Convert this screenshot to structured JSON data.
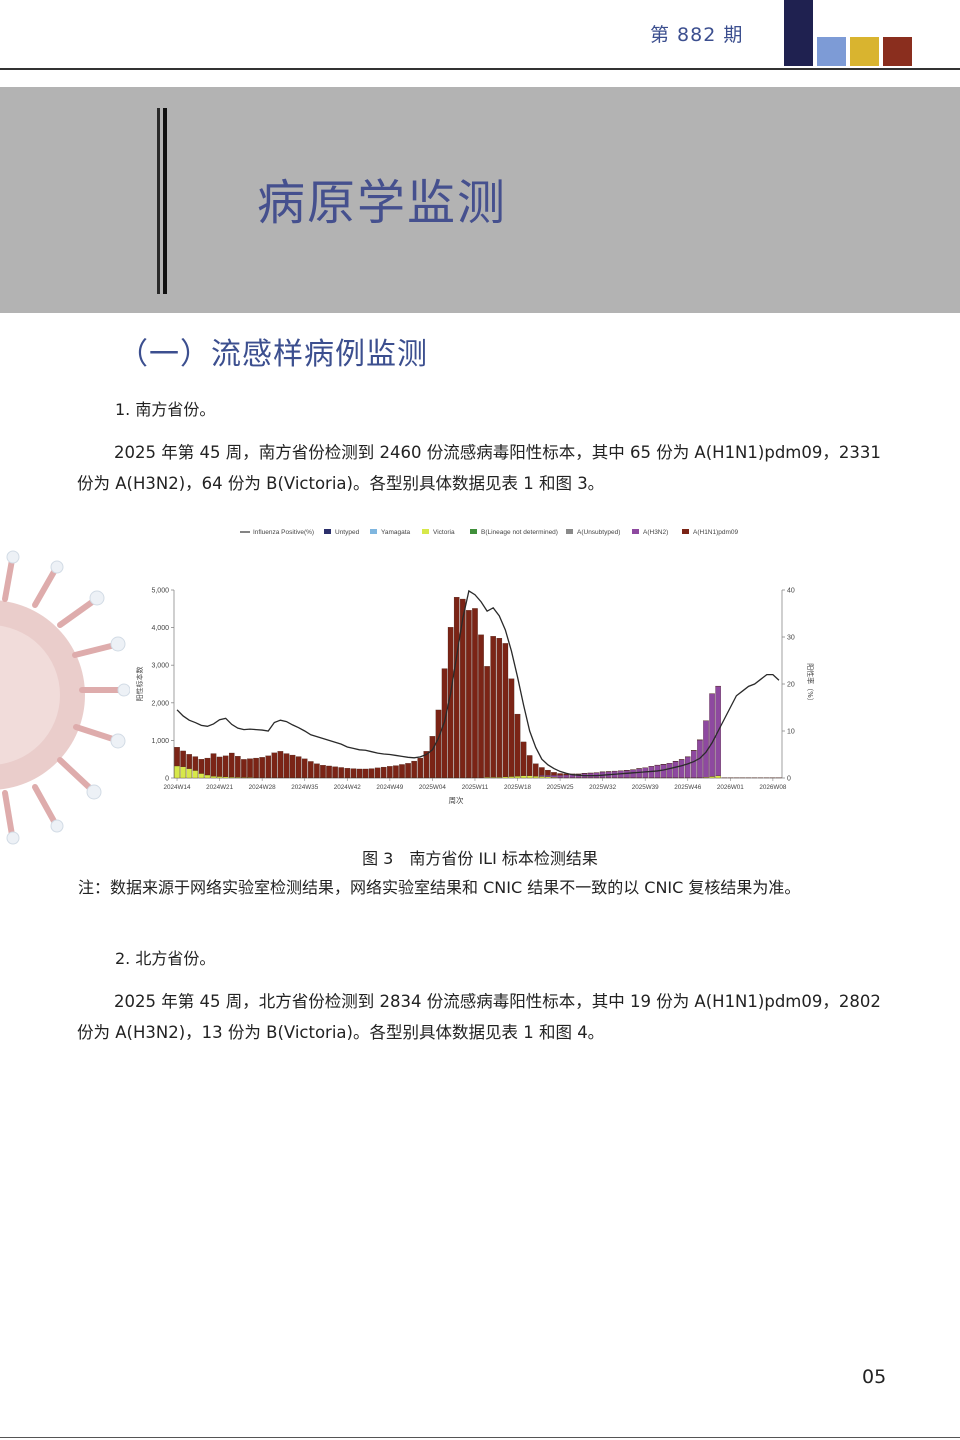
{
  "header": {
    "issue": "第 882 期",
    "colors": [
      "#1f2150",
      "#7d9bd6",
      "#d9b42f",
      "#8a2e1e"
    ]
  },
  "banner": {
    "title": "病原学监测",
    "bg": "#b3b3b3"
  },
  "section": {
    "title": "（一）流感样病例监测"
  },
  "south": {
    "heading": "1. 南方省份。",
    "paragraph": "2025 年第 45 周，南方省份检测到 2460 份流感病毒阳性标本，其中 65 份为 A(H1N1)pdm09，2331 份为 A(H3N2)，64 份为 B(Victoria)。各型别具体数据见表 1 和图 3。"
  },
  "figure": {
    "caption": "图 3　南方省份 ILI 标本检测结果",
    "note": "注：数据来源于网络实验室检测结果，网络实验室结果和 CNIC 结果不一致的以 CNIC 复核结果为准。"
  },
  "north": {
    "heading": "2. 北方省份。",
    "paragraph": "2025 年第 45 周，北方省份检测到 2834 份流感病毒阳性标本，其中 19 份为 A(H1N1)pdm09，2802 份为 A(H3N2)，13 份为 B(Victoria)。各型别具体数据见表 1 和图 4。"
  },
  "page_number": "05",
  "chart_data": {
    "type": "bar",
    "stacked": true,
    "xlabel": "周次",
    "ylabel": "阳性标本数",
    "y2label": "阳性率（%）",
    "ylim": [
      0,
      5000
    ],
    "y2lim": [
      0,
      40
    ],
    "yticks": [
      "0",
      "1,000",
      "2,000",
      "3,000",
      "4,000",
      "5,000"
    ],
    "y2ticks": [
      "0",
      "10",
      "20",
      "30",
      "40"
    ],
    "xticks": [
      "2024W14",
      "2024W21",
      "2024W28",
      "2024W35",
      "2024W42",
      "2024W49",
      "2025W04",
      "2025W11",
      "2025W18",
      "2025W25",
      "2025W32",
      "2025W39",
      "2025W46",
      "2026W01",
      "2026W08"
    ],
    "legend_position": "top",
    "legend": [
      {
        "name": "Influenza Positive(%)",
        "color": "#333333",
        "kind": "line"
      },
      {
        "name": "Untyped",
        "color": "#2b2f6b",
        "kind": "bar"
      },
      {
        "name": "Yamagata",
        "color": "#7fb6df",
        "kind": "bar"
      },
      {
        "name": "Victoria",
        "color": "#d7e84a",
        "kind": "bar"
      },
      {
        "name": "B(Lineage not determined)",
        "color": "#3f8f3a",
        "kind": "bar"
      },
      {
        "name": "A(Unsubtyped)",
        "color": "#8a8a8a",
        "kind": "bar"
      },
      {
        "name": "A(H3N2)",
        "color": "#8e49a0",
        "kind": "bar"
      },
      {
        "name": "A(H1N1)pdm09",
        "color": "#7b2416",
        "kind": "bar"
      }
    ],
    "weeks_total": 100,
    "series": [
      {
        "name": "A(H1N1)pdm09",
        "values": [
          500,
          420,
          380,
          370,
          380,
          450,
          600,
          520,
          560,
          640,
          560,
          480,
          500,
          520,
          540,
          580,
          660,
          700,
          640,
          600,
          560,
          500,
          430,
          370,
          330,
          310,
          290,
          270,
          250,
          240,
          230,
          230,
          240,
          260,
          280,
          300,
          320,
          350,
          380,
          440,
          520,
          700,
          1100,
          1800,
          2900,
          4000,
          4800,
          4750,
          4450,
          4500,
          3800,
          2950,
          3750,
          3700,
          3550,
          2600,
          1650,
          900,
          540,
          330,
          210,
          140,
          80,
          50,
          30,
          20,
          10,
          8,
          5,
          5,
          5,
          5,
          5,
          5,
          5,
          5,
          5,
          5,
          5,
          5,
          5,
          5,
          5,
          5,
          5,
          5,
          5,
          5,
          5,
          5,
          5,
          5,
          5,
          5,
          5,
          5,
          5,
          5,
          5,
          5
        ]
      },
      {
        "name": "A(H3N2)",
        "values": [
          0,
          0,
          0,
          0,
          0,
          0,
          0,
          0,
          0,
          0,
          0,
          0,
          0,
          0,
          0,
          0,
          0,
          0,
          0,
          0,
          0,
          0,
          0,
          0,
          0,
          0,
          0,
          0,
          0,
          0,
          0,
          0,
          0,
          0,
          0,
          0,
          0,
          0,
          0,
          0,
          0,
          0,
          0,
          0,
          0,
          0,
          0,
          0,
          0,
          0,
          0,
          0,
          0,
          0,
          0,
          0,
          0,
          0,
          0,
          0,
          30,
          40,
          50,
          60,
          70,
          80,
          90,
          110,
          120,
          130,
          150,
          160,
          170,
          180,
          190,
          210,
          240,
          260,
          300,
          330,
          350,
          380,
          430,
          480,
          550,
          720,
          1000,
          1500,
          2200,
          2380,
          0,
          0,
          0,
          0,
          0,
          0,
          0,
          0,
          0,
          0
        ]
      },
      {
        "name": "Victoria",
        "values": [
          320,
          300,
          250,
          200,
          120,
          80,
          50,
          40,
          30,
          25,
          20,
          15,
          15,
          10,
          10,
          10,
          10,
          10,
          10,
          10,
          10,
          10,
          10,
          10,
          10,
          10,
          10,
          10,
          10,
          10,
          10,
          10,
          10,
          10,
          10,
          10,
          10,
          10,
          10,
          10,
          10,
          10,
          10,
          10,
          10,
          10,
          10,
          10,
          10,
          10,
          10,
          20,
          20,
          20,
          30,
          40,
          50,
          60,
          60,
          50,
          40,
          30,
          20,
          10,
          10,
          10,
          10,
          10,
          10,
          10,
          10,
          10,
          10,
          10,
          10,
          10,
          10,
          10,
          10,
          10,
          10,
          10,
          10,
          10,
          10,
          10,
          10,
          20,
          40,
          60,
          0,
          0,
          0,
          0,
          0,
          0,
          0,
          0,
          0,
          0
        ]
      }
    ],
    "positivity": [
      14.5,
      13.2,
      12.3,
      11.8,
      11.2,
      11.0,
      11.5,
      12.4,
      12.7,
      11.4,
      10.6,
      10.3,
      10.4,
      10.3,
      10.2,
      10.0,
      11.8,
      12.3,
      12.0,
      11.3,
      10.7,
      10.0,
      9.2,
      8.8,
      8.4,
      8.0,
      7.6,
      7.2,
      6.6,
      6.3,
      6.0,
      5.9,
      5.6,
      5.3,
      5.1,
      5.0,
      4.8,
      4.6,
      4.4,
      4.3,
      4.5,
      5.0,
      6.0,
      8.5,
      12.0,
      18.0,
      26.0,
      34.0,
      39.8,
      39.0,
      37.5,
      35.5,
      36.2,
      34.5,
      31.5,
      27.0,
      21.5,
      15.5,
      10.0,
      6.5,
      4.0,
      2.8,
      2.0,
      1.4,
      1.0,
      0.7,
      0.6,
      0.5,
      0.5,
      0.5,
      0.6,
      0.7,
      0.8,
      0.9,
      1.0,
      1.1,
      1.2,
      1.3,
      1.4,
      1.5,
      1.7,
      2.0,
      2.3,
      2.6,
      3.0,
      3.5,
      4.2,
      5.5,
      7.5,
      10.0,
      12.5,
      15.0,
      17.5,
      18.5,
      19.5,
      20.0,
      21.0,
      22.0,
      22.0,
      20.8
    ]
  }
}
